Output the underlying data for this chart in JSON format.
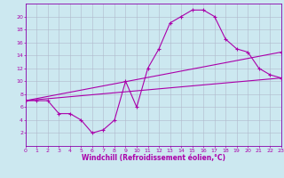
{
  "title": "",
  "xlabel": "Windchill (Refroidissement éolien,°C)",
  "bg_color": "#cce8f0",
  "grid_color": "#b0b8cc",
  "line_color": "#aa00aa",
  "spine_color": "#8800aa",
  "ylim": [
    0,
    22
  ],
  "xlim": [
    0,
    23
  ],
  "yticks": [
    2,
    4,
    6,
    8,
    10,
    12,
    14,
    16,
    18,
    20
  ],
  "xticks": [
    0,
    1,
    2,
    3,
    4,
    5,
    6,
    7,
    8,
    9,
    10,
    11,
    12,
    13,
    14,
    15,
    16,
    17,
    18,
    19,
    20,
    21,
    22,
    23
  ],
  "curve1_x": [
    0,
    1,
    2,
    3,
    4,
    5,
    6,
    7,
    8,
    9,
    10,
    11,
    12,
    13,
    14,
    15,
    16,
    17,
    18,
    19,
    20,
    21,
    22,
    23
  ],
  "curve1_y": [
    7,
    7,
    7,
    5,
    5,
    4,
    2,
    2.5,
    4,
    10,
    6,
    12,
    15,
    19,
    20,
    21,
    21,
    20,
    16.5,
    15,
    14.5,
    12,
    11,
    10.5
  ],
  "curve2_x": [
    0,
    23
  ],
  "curve2_y": [
    7,
    10.5
  ],
  "curve3_x": [
    0,
    23
  ],
  "curve3_y": [
    7,
    14.5
  ]
}
